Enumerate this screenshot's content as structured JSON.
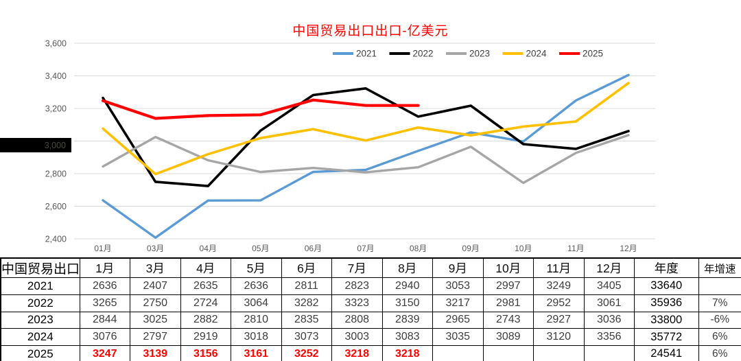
{
  "title": {
    "text": "中国贸易出口出口-亿美元",
    "color": "#ff0000"
  },
  "redaction": {
    "label": "3,000"
  },
  "chart_data": {
    "type": "line",
    "title": "中国贸易出口出口-亿美元",
    "xlabel": "",
    "ylabel": "",
    "x_categories": [
      "01月",
      "03月",
      "04月",
      "05月",
      "06月",
      "07月",
      "08月",
      "09月",
      "10月",
      "11月",
      "12月"
    ],
    "ylim": [
      2400,
      3600
    ],
    "yticks": [
      3600,
      3400,
      3200,
      3000,
      2800,
      2600,
      2400
    ],
    "ytick_labels": [
      "3,600",
      "3,400",
      "3,200",
      "3,000",
      "2,800",
      "2,600",
      "2,400"
    ],
    "grid": true,
    "legend_position": "top",
    "legend": [
      "2021",
      "2022",
      "2023",
      "2024",
      "2025"
    ],
    "series": [
      {
        "name": "2021",
        "color": "#5B9BD5",
        "values": [
          2636,
          2407,
          2635,
          2636,
          2811,
          2823,
          2940,
          3053,
          2997,
          3249,
          3405
        ]
      },
      {
        "name": "2022",
        "color": "#000000",
        "values": [
          3265,
          2750,
          2724,
          3064,
          3282,
          3323,
          3150,
          3217,
          2981,
          2952,
          3061
        ]
      },
      {
        "name": "2023",
        "color": "#A6A6A6",
        "values": [
          2844,
          3025,
          2882,
          2810,
          2835,
          2808,
          2839,
          2965,
          2743,
          2927,
          3036
        ]
      },
      {
        "name": "2024",
        "color": "#FFC000",
        "values": [
          3076,
          2797,
          2919,
          3018,
          3073,
          3003,
          3083,
          3035,
          3089,
          3120,
          3356
        ]
      },
      {
        "name": "2025",
        "color": "#FF0000",
        "values": [
          3247,
          3139,
          3156,
          3161,
          3252,
          3218,
          3218
        ]
      }
    ]
  },
  "table": {
    "corner_header": "中国贸易出口",
    "month_headers": [
      "1月",
      "3月",
      "4月",
      "5月",
      "6月",
      "7月",
      "8月",
      "9月",
      "10月",
      "11月",
      "12月"
    ],
    "annual_header": "年度",
    "growth_header": "年增速",
    "rows": [
      {
        "year": "2021",
        "highlight": false,
        "values": [
          "2636",
          "2407",
          "2635",
          "2636",
          "2811",
          "2823",
          "2940",
          "3053",
          "2997",
          "3249",
          "3405"
        ],
        "annual": "33640",
        "growth": ""
      },
      {
        "year": "2022",
        "highlight": false,
        "values": [
          "3265",
          "2750",
          "2724",
          "3064",
          "3282",
          "3323",
          "3150",
          "3217",
          "2981",
          "2952",
          "3061"
        ],
        "annual": "35936",
        "growth": "7%"
      },
      {
        "year": "2023",
        "highlight": false,
        "values": [
          "2844",
          "3025",
          "2882",
          "2810",
          "2835",
          "2808",
          "2839",
          "2965",
          "2743",
          "2927",
          "3036"
        ],
        "annual": "33800",
        "growth": "-6%"
      },
      {
        "year": "2024",
        "highlight": false,
        "values": [
          "3076",
          "2797",
          "2919",
          "3018",
          "3073",
          "3003",
          "3083",
          "3035",
          "3089",
          "3120",
          "3356"
        ],
        "annual": "35772",
        "growth": "6%"
      },
      {
        "year": "2025",
        "highlight": true,
        "values": [
          "3247",
          "3139",
          "3156",
          "3161",
          "3252",
          "3218",
          "3218",
          "",
          "",
          "",
          ""
        ],
        "annual": "24541",
        "growth": "6%"
      }
    ]
  }
}
